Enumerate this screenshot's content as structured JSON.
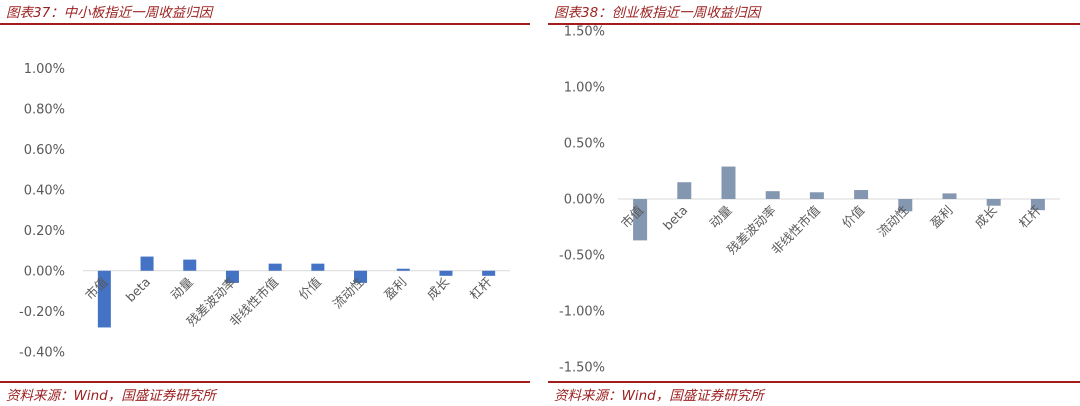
{
  "colors": {
    "accent_red": "#a31d1d",
    "left_bar": "#4472c4",
    "right_bar": "#8497b0",
    "axis": "#d9d9d9",
    "tick_text": "#595959"
  },
  "left": {
    "title": "图表37：中小板指近一周收益归因",
    "source": "资料来源：Wind，国盛证券研究所",
    "chart_data": {
      "type": "bar",
      "title": "",
      "xlabel": "",
      "ylabel": "",
      "ylim": [
        -0.005,
        0.011
      ],
      "yticks": [
        -0.004,
        -0.002,
        0.0,
        0.002,
        0.004,
        0.006,
        0.008,
        0.01
      ],
      "ytick_labels": [
        "-0.40%",
        "-0.20%",
        "0.00%",
        "0.20%",
        "0.40%",
        "0.60%",
        "0.80%",
        "1.00%"
      ],
      "categories": [
        "市值",
        "beta",
        "动量",
        "残差波动率",
        "非线性市值",
        "价值",
        "流动性",
        "盈利",
        "成长",
        "杠杆"
      ],
      "values": [
        -0.0028,
        0.0007,
        0.00055,
        -0.0006,
        0.00035,
        0.00035,
        -0.0006,
        0.0001,
        -0.00025,
        -0.00025
      ],
      "grid": false,
      "legend": "none"
    }
  },
  "right": {
    "title": "图表38：创业板指近一周收益归因",
    "source": "资料来源：Wind，国盛证券研究所",
    "chart_data": {
      "type": "bar",
      "title": "",
      "xlabel": "",
      "ylabel": "",
      "ylim": [
        -0.016,
        0.016
      ],
      "yticks": [
        -0.015,
        -0.01,
        -0.005,
        0.0,
        0.005,
        0.01,
        0.015
      ],
      "ytick_labels": [
        "-1.50%",
        "-1.00%",
        "-0.50%",
        "0.00%",
        "0.50%",
        "1.00%",
        "1.50%"
      ],
      "categories": [
        "市值",
        "beta",
        "动量",
        "残差波动率",
        "非线性市值",
        "价值",
        "流动性",
        "盈利",
        "成长",
        "杠杆"
      ],
      "values": [
        -0.0037,
        0.0015,
        0.0029,
        0.0007,
        0.0006,
        0.0008,
        -0.0011,
        0.0005,
        -0.0006,
        -0.001
      ],
      "grid": false,
      "legend": "none"
    }
  }
}
